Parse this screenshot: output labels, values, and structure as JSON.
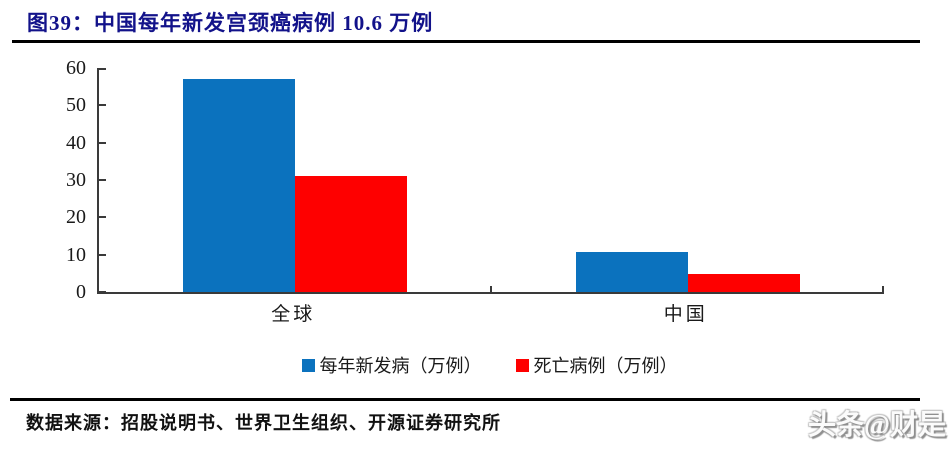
{
  "title": "图39：中国每年新发宫颈癌病例 10.6 万例",
  "chart_data": {
    "type": "bar",
    "title": "中国每年新发宫颈癌病例 10.6 万例",
    "categories": [
      "全球",
      "中国"
    ],
    "series": [
      {
        "name": "每年新发病（万例）",
        "color": "#0B72BE",
        "values": [
          57,
          10.6
        ]
      },
      {
        "name": "死亡病例（万例）",
        "color": "#FE0000",
        "values": [
          31,
          4.8
        ]
      }
    ],
    "xlabel": "",
    "ylabel": "",
    "ylim": [
      0,
      60
    ],
    "yticks": [
      0,
      10,
      20,
      30,
      40,
      50,
      60
    ],
    "grid": false,
    "legend_position": "bottom"
  },
  "source": "数据来源：招股说明书、世界卫生组织、开源证券研究所",
  "watermark": "头条@财是",
  "colors": {
    "title": "#12128A",
    "axis": "#3a3a3a",
    "rule": "#000000",
    "new_cases_bar": "#0B72BE",
    "deaths_bar": "#FE0000"
  }
}
